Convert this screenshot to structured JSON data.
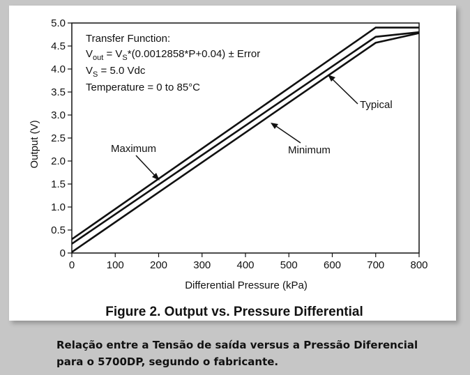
{
  "chart_data": {
    "type": "line",
    "title": "Figure 2. Output vs. Pressure Differential",
    "xlabel": "Differential Pressure (kPa)",
    "ylabel": "Output (V)",
    "xlim": [
      0,
      800
    ],
    "ylim": [
      0,
      5.0
    ],
    "x_ticks": [
      "0",
      "100",
      "200",
      "300",
      "400",
      "500",
      "600",
      "700",
      "800"
    ],
    "y_ticks": [
      "0",
      "0.5",
      "1.0",
      "1.5",
      "2.0",
      "2.5",
      "3.0",
      "3.5",
      "4.0",
      "4.5",
      "5.0"
    ],
    "grid": false,
    "series": [
      {
        "name": "Maximum",
        "x": [
          0,
          700,
          800
        ],
        "y": [
          0.3,
          4.9,
          4.9
        ]
      },
      {
        "name": "Typical",
        "x": [
          0,
          700,
          800
        ],
        "y": [
          0.2,
          4.7,
          4.8
        ]
      },
      {
        "name": "Minimum",
        "x": [
          0,
          700,
          800
        ],
        "y": [
          0.02,
          4.57,
          4.78
        ]
      }
    ],
    "annotations": {
      "transfer_title": "Transfer Function:",
      "eq_prefix": "V",
      "eq_sub1": "out",
      "eq_mid": " = V",
      "eq_sub2": "S",
      "eq_rest": "*(0.0012858*P+0.04) ± Error",
      "vs_prefix": "V",
      "vs_sub": "S",
      "vs_rest": " = 5.0 Vdc",
      "temperature": "Temperature = 0 to 85°C",
      "label_maximum": "Maximum",
      "label_typical": "Typical",
      "label_minimum": "Minimum"
    }
  },
  "caption": "Relação entre a Tensão de saída versus a Pressão Diferencial para o 5700DP, segundo o fabricante."
}
